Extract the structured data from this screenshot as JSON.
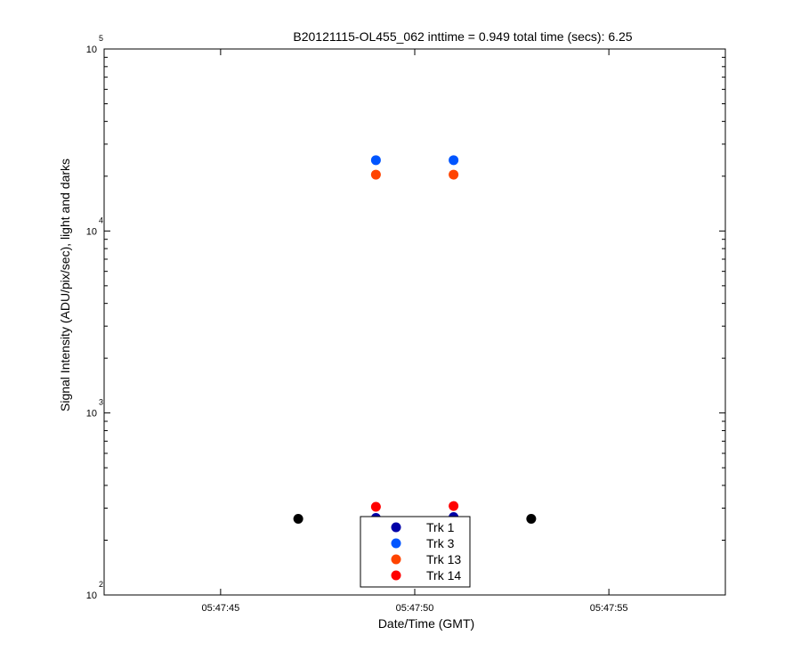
{
  "chart_data": {
    "type": "scatter",
    "title": "B20121115-OL455_062 inttime = 0.949 total time (secs): 6.25",
    "xlabel": "Date/Time (GMT)",
    "ylabel": "Signal Intensity (ADU/pix/sec), light and darks",
    "yscale": "log",
    "ylim": [
      100,
      100000
    ],
    "xlim": [
      "05:47:42",
      "05:47:58"
    ],
    "x_ticks": [
      "05:47:45",
      "05:47:50",
      "05:47:55"
    ],
    "y_ticks": [
      {
        "base": "10",
        "exp": "2",
        "value": 100
      },
      {
        "base": "10",
        "exp": "3",
        "value": 1000
      },
      {
        "base": "10",
        "exp": "4",
        "value": 10000
      },
      {
        "base": "10",
        "exp": "5",
        "value": 100000
      }
    ],
    "grid": false,
    "legend_position": "bottom-center",
    "series": [
      {
        "name": "Trk 1",
        "color": "#0000a8",
        "points": [
          [
            "05:47:49",
            265
          ],
          [
            "05:47:51",
            268
          ]
        ]
      },
      {
        "name": "Trk 3",
        "color": "#0055ff",
        "points": [
          [
            "05:47:49",
            24500
          ],
          [
            "05:47:51",
            24500
          ]
        ]
      },
      {
        "name": "Trk 13",
        "color": "#ff4400",
        "points": [
          [
            "05:47:49",
            20400
          ],
          [
            "05:47:51",
            20400
          ]
        ]
      },
      {
        "name": "Trk 14",
        "color": "#ff0000",
        "points": [
          [
            "05:47:49",
            305
          ],
          [
            "05:47:51",
            308
          ]
        ]
      },
      {
        "name": "",
        "color": "#000000",
        "points": [
          [
            "05:47:47",
            262
          ],
          [
            "05:47:53",
            262
          ]
        ]
      }
    ]
  }
}
